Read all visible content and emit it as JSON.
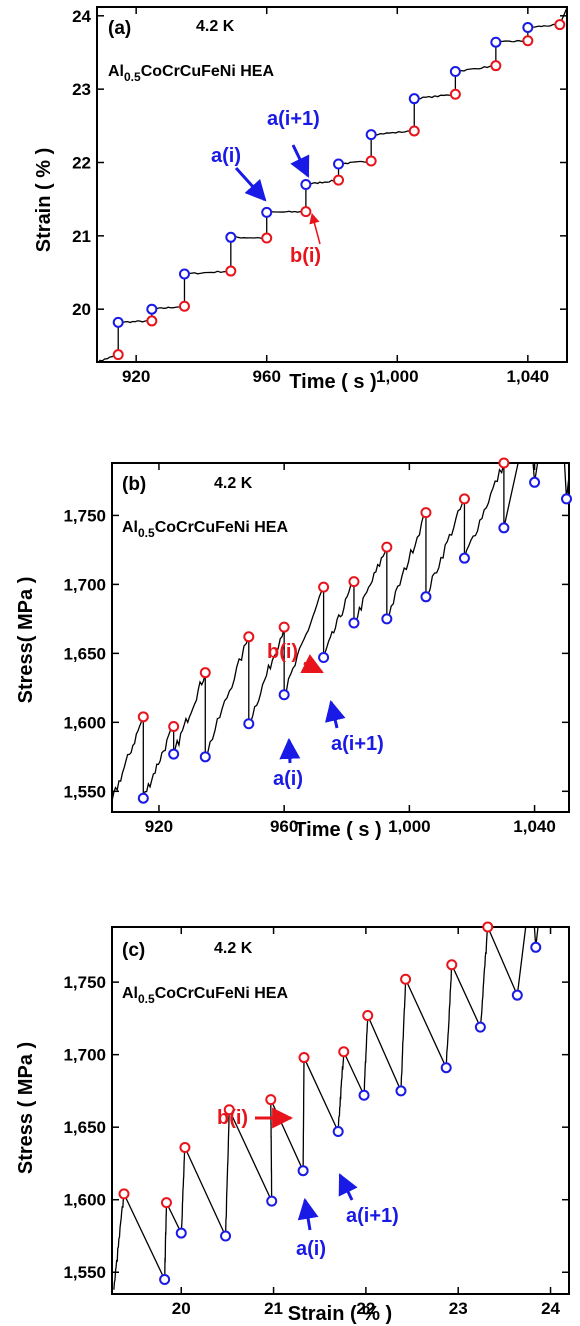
{
  "colors": {
    "red": "#e8141b",
    "blue": "#1a1ae6",
    "trace": "#000000"
  },
  "chart_data": [
    {
      "type": "line",
      "panel_label": "(a)",
      "temperature": "4.2 K",
      "material_prefix": "Al",
      "material_sub": "0.5",
      "material_suffix": "CoCrCuFeNi HEA",
      "xlabel": "Time ( s )",
      "ylabel": "Strain ( % )",
      "xlim": [
        908,
        1052
      ],
      "ylim": [
        19.28,
        24.12
      ],
      "xticks": [
        {
          "v": 920,
          "t": "920"
        },
        {
          "v": 960,
          "t": "960"
        },
        {
          "v": 1000,
          "t": "1,000"
        },
        {
          "v": 1040,
          "t": "1,040"
        }
      ],
      "yticks": [
        {
          "v": 20,
          "t": "20"
        },
        {
          "v": 21,
          "t": "21"
        },
        {
          "v": 22,
          "t": "22"
        },
        {
          "v": 23,
          "t": "23"
        },
        {
          "v": 24,
          "t": "24"
        }
      ],
      "series": [
        {
          "name": "a(i)",
          "color": "blue",
          "x": [
            914.5,
            924.8,
            934.8,
            949.0,
            960.0,
            972.0,
            982.0,
            992.0,
            1005.2,
            1017.8,
            1030.2,
            1040.0
          ],
          "y": [
            19.82,
            20.0,
            20.48,
            20.98,
            21.32,
            21.7,
            21.98,
            22.38,
            22.87,
            23.24,
            23.64,
            23.84
          ]
        },
        {
          "name": "b(i)",
          "color": "red",
          "x": [
            914.5,
            924.8,
            934.8,
            949.0,
            960.0,
            972.0,
            982.0,
            992.0,
            1005.2,
            1017.8,
            1030.2,
            1040.0,
            1049.8
          ],
          "y": [
            19.38,
            19.84,
            20.04,
            20.52,
            20.97,
            21.33,
            21.76,
            22.02,
            22.43,
            22.93,
            23.32,
            23.66,
            23.88
          ]
        }
      ],
      "annotations": [
        {
          "text": "a(i)",
          "color": "blue"
        },
        {
          "text": "a(i+1)",
          "color": "blue"
        },
        {
          "text": "b(i)",
          "color": "red"
        }
      ]
    },
    {
      "type": "line",
      "panel_label": "(b)",
      "temperature": "4.2 K",
      "material_prefix": "Al",
      "material_sub": "0.5",
      "material_suffix": "CoCrCuFeNi HEA",
      "xlabel": "Time ( s )",
      "ylabel": "Stress( MPa )",
      "xlim": [
        905,
        1051
      ],
      "ylim": [
        1535,
        1788
      ],
      "xticks": [
        {
          "v": 920,
          "t": "920"
        },
        {
          "v": 960,
          "t": "960"
        },
        {
          "v": 1000,
          "t": "1,000"
        },
        {
          "v": 1040,
          "t": "1,040"
        }
      ],
      "yticks": [
        {
          "v": 1550,
          "t": "1,550"
        },
        {
          "v": 1600,
          "t": "1,600"
        },
        {
          "v": 1650,
          "t": "1,650"
        },
        {
          "v": 1700,
          "t": "1,700"
        },
        {
          "v": 1750,
          "t": "1,750"
        }
      ],
      "series": [
        {
          "name": "b(i)",
          "color": "red",
          "x": [
            915,
            924.7,
            934.8,
            948.7,
            960,
            972.6,
            982.3,
            992.8,
            1005.3,
            1017.6,
            1030.2
          ],
          "y": [
            1604,
            1597,
            1636,
            1662,
            1669,
            1698,
            1702,
            1727,
            1752,
            1762,
            1788
          ]
        },
        {
          "name": "a(i)",
          "color": "blue",
          "x": [
            915,
            924.7,
            934.8,
            948.7,
            960,
            972.6,
            982.3,
            992.8,
            1005.3,
            1017.6,
            1030.2,
            1040,
            1050.2
          ],
          "y": [
            1545,
            1577,
            1575,
            1599,
            1620,
            1647,
            1672,
            1675,
            1691,
            1719,
            1741,
            1774,
            1762
          ]
        }
      ],
      "annotations": [
        {
          "text": "b(i)",
          "color": "red"
        },
        {
          "text": "a(i+1)",
          "color": "blue"
        },
        {
          "text": "a(i)",
          "color": "blue"
        }
      ]
    },
    {
      "type": "line",
      "panel_label": "(c)",
      "temperature": "4.2 K",
      "material_prefix": "Al",
      "material_sub": "0.5",
      "material_suffix": "CoCrCuFeNi HEA",
      "xlabel": "Strain ( % )",
      "ylabel": "Stress ( MPa )",
      "xlim": [
        19.25,
        24.2
      ],
      "ylim": [
        1535,
        1788
      ],
      "xticks": [
        {
          "v": 20,
          "t": "20"
        },
        {
          "v": 21,
          "t": "21"
        },
        {
          "v": 22,
          "t": "22"
        },
        {
          "v": 23,
          "t": "23"
        },
        {
          "v": 24,
          "t": "24"
        }
      ],
      "yticks": [
        {
          "v": 1550,
          "t": "1,550"
        },
        {
          "v": 1600,
          "t": "1,600"
        },
        {
          "v": 1650,
          "t": "1,650"
        },
        {
          "v": 1700,
          "t": "1,700"
        },
        {
          "v": 1750,
          "t": "1,750"
        }
      ],
      "series": [
        {
          "name": "b(i)",
          "color": "red",
          "x": [
            19.38,
            19.84,
            20.04,
            20.52,
            20.97,
            21.33,
            21.76,
            22.02,
            22.43,
            22.93,
            23.32
          ],
          "y": [
            1604,
            1598,
            1636,
            1662,
            1669,
            1698,
            1702,
            1727,
            1752,
            1762,
            1788
          ]
        },
        {
          "name": "a(i)",
          "color": "blue",
          "x": [
            19.82,
            20.0,
            20.48,
            20.98,
            21.32,
            21.7,
            21.98,
            22.38,
            22.87,
            23.24,
            23.64,
            23.84
          ],
          "y": [
            1545,
            1577,
            1575,
            1599,
            1620,
            1647,
            1672,
            1675,
            1691,
            1719,
            1741,
            1774
          ]
        }
      ],
      "annotations": [
        {
          "text": "b(i)",
          "color": "red"
        },
        {
          "text": "a(i+1)",
          "color": "blue"
        },
        {
          "text": "a(i)",
          "color": "blue"
        }
      ]
    }
  ]
}
